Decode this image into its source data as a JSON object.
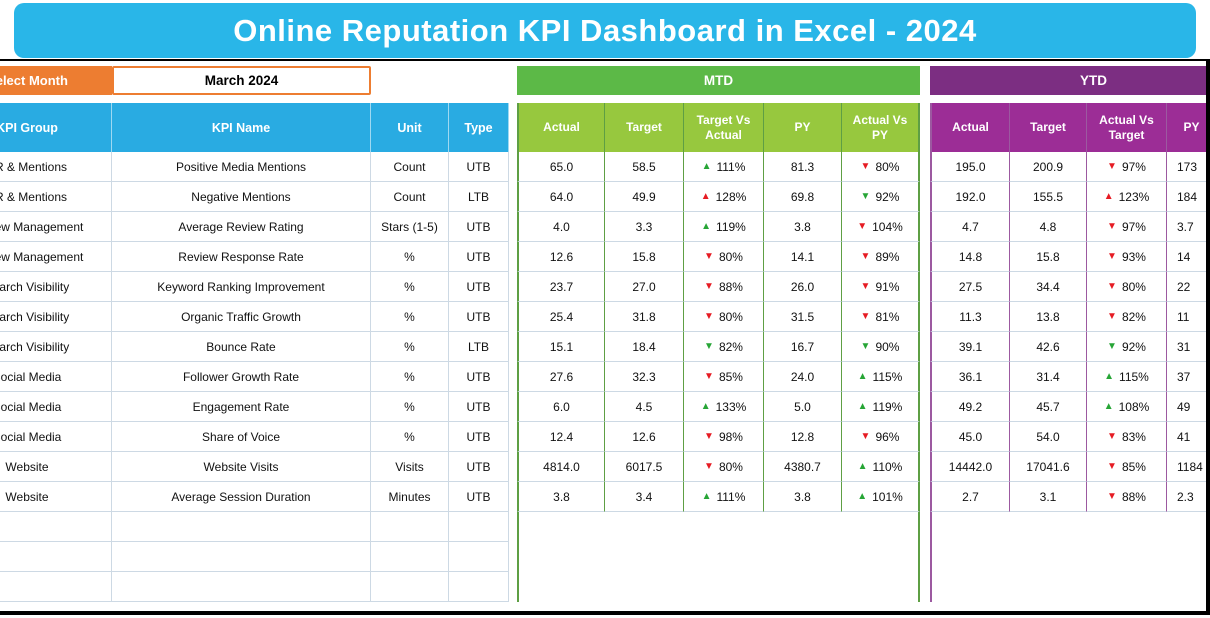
{
  "title": "Online Reputation KPI Dashboard in Excel - 2024",
  "controls": {
    "select_month_label": "Select Month",
    "selected_month": "March 2024"
  },
  "sections": {
    "mtd_label": "MTD",
    "ytd_label": "YTD"
  },
  "table": {
    "left_headers": [
      "KPI Group",
      "KPI Name",
      "Unit",
      "Type"
    ],
    "mtd_headers": [
      "Actual",
      "Target",
      "Target Vs Actual",
      "PY",
      "Actual Vs PY"
    ],
    "ytd_headers": [
      "Actual",
      "Target",
      "Actual Vs Target",
      "PY"
    ],
    "empty_row_count": 3,
    "rows": [
      {
        "group": "PR & Mentions",
        "name": "Positive Media Mentions",
        "unit": "Count",
        "type": "UTB",
        "mtd": {
          "actual": "65.0",
          "target": "58.5",
          "tva": {
            "d": "up",
            "c": "g",
            "v": "111%"
          },
          "py": "81.3",
          "avpy": {
            "d": "down",
            "c": "r",
            "v": "80%"
          }
        },
        "ytd": {
          "actual": "195.0",
          "target": "200.9",
          "avt": {
            "d": "down",
            "c": "r",
            "v": "97%"
          },
          "py": "173"
        }
      },
      {
        "group": "PR & Mentions",
        "name": "Negative Mentions",
        "unit": "Count",
        "type": "LTB",
        "mtd": {
          "actual": "64.0",
          "target": "49.9",
          "tva": {
            "d": "up",
            "c": "r",
            "v": "128%"
          },
          "py": "69.8",
          "avpy": {
            "d": "down",
            "c": "g",
            "v": "92%"
          }
        },
        "ytd": {
          "actual": "192.0",
          "target": "155.5",
          "avt": {
            "d": "up",
            "c": "r",
            "v": "123%"
          },
          "py": "184"
        }
      },
      {
        "group": "Review Management",
        "name": "Average Review Rating",
        "unit": "Stars (1-5)",
        "type": "UTB",
        "mtd": {
          "actual": "4.0",
          "target": "3.3",
          "tva": {
            "d": "up",
            "c": "g",
            "v": "119%"
          },
          "py": "3.8",
          "avpy": {
            "d": "down",
            "c": "r",
            "v": "104%"
          }
        },
        "ytd": {
          "actual": "4.7",
          "target": "4.8",
          "avt": {
            "d": "down",
            "c": "r",
            "v": "97%"
          },
          "py": "3.7"
        }
      },
      {
        "group": "Review Management",
        "name": "Review Response Rate",
        "unit": "%",
        "type": "UTB",
        "mtd": {
          "actual": "12.6",
          "target": "15.8",
          "tva": {
            "d": "down",
            "c": "r",
            "v": "80%"
          },
          "py": "14.1",
          "avpy": {
            "d": "down",
            "c": "r",
            "v": "89%"
          }
        },
        "ytd": {
          "actual": "14.8",
          "target": "15.8",
          "avt": {
            "d": "down",
            "c": "r",
            "v": "93%"
          },
          "py": "14"
        }
      },
      {
        "group": "Search Visibility",
        "name": "Keyword Ranking Improvement",
        "unit": "%",
        "type": "UTB",
        "mtd": {
          "actual": "23.7",
          "target": "27.0",
          "tva": {
            "d": "down",
            "c": "r",
            "v": "88%"
          },
          "py": "26.0",
          "avpy": {
            "d": "down",
            "c": "r",
            "v": "91%"
          }
        },
        "ytd": {
          "actual": "27.5",
          "target": "34.4",
          "avt": {
            "d": "down",
            "c": "r",
            "v": "80%"
          },
          "py": "22"
        }
      },
      {
        "group": "Search Visibility",
        "name": "Organic Traffic Growth",
        "unit": "%",
        "type": "UTB",
        "mtd": {
          "actual": "25.4",
          "target": "31.8",
          "tva": {
            "d": "down",
            "c": "r",
            "v": "80%"
          },
          "py": "31.5",
          "avpy": {
            "d": "down",
            "c": "r",
            "v": "81%"
          }
        },
        "ytd": {
          "actual": "11.3",
          "target": "13.8",
          "avt": {
            "d": "down",
            "c": "r",
            "v": "82%"
          },
          "py": "11"
        }
      },
      {
        "group": "Search Visibility",
        "name": "Bounce Rate",
        "unit": "%",
        "type": "LTB",
        "mtd": {
          "actual": "15.1",
          "target": "18.4",
          "tva": {
            "d": "down",
            "c": "g",
            "v": "82%"
          },
          "py": "16.7",
          "avpy": {
            "d": "down",
            "c": "g",
            "v": "90%"
          }
        },
        "ytd": {
          "actual": "39.1",
          "target": "42.6",
          "avt": {
            "d": "down",
            "c": "g",
            "v": "92%"
          },
          "py": "31"
        }
      },
      {
        "group": "Social Media",
        "name": "Follower Growth Rate",
        "unit": "%",
        "type": "UTB",
        "mtd": {
          "actual": "27.6",
          "target": "32.3",
          "tva": {
            "d": "down",
            "c": "r",
            "v": "85%"
          },
          "py": "24.0",
          "avpy": {
            "d": "up",
            "c": "g",
            "v": "115%"
          }
        },
        "ytd": {
          "actual": "36.1",
          "target": "31.4",
          "avt": {
            "d": "up",
            "c": "g",
            "v": "115%"
          },
          "py": "37"
        }
      },
      {
        "group": "Social Media",
        "name": "Engagement Rate",
        "unit": "%",
        "type": "UTB",
        "mtd": {
          "actual": "6.0",
          "target": "4.5",
          "tva": {
            "d": "up",
            "c": "g",
            "v": "133%"
          },
          "py": "5.0",
          "avpy": {
            "d": "up",
            "c": "g",
            "v": "119%"
          }
        },
        "ytd": {
          "actual": "49.2",
          "target": "45.7",
          "avt": {
            "d": "up",
            "c": "g",
            "v": "108%"
          },
          "py": "49"
        }
      },
      {
        "group": "Social Media",
        "name": "Share of Voice",
        "unit": "%",
        "type": "UTB",
        "mtd": {
          "actual": "12.4",
          "target": "12.6",
          "tva": {
            "d": "down",
            "c": "r",
            "v": "98%"
          },
          "py": "12.8",
          "avpy": {
            "d": "down",
            "c": "r",
            "v": "96%"
          }
        },
        "ytd": {
          "actual": "45.0",
          "target": "54.0",
          "avt": {
            "d": "down",
            "c": "r",
            "v": "83%"
          },
          "py": "41"
        }
      },
      {
        "group": "Website",
        "name": "Website Visits",
        "unit": "Visits",
        "type": "UTB",
        "mtd": {
          "actual": "4814.0",
          "target": "6017.5",
          "tva": {
            "d": "down",
            "c": "r",
            "v": "80%"
          },
          "py": "4380.7",
          "avpy": {
            "d": "up",
            "c": "g",
            "v": "110%"
          }
        },
        "ytd": {
          "actual": "14442.0",
          "target": "17041.6",
          "avt": {
            "d": "down",
            "c": "r",
            "v": "85%"
          },
          "py": "1184"
        }
      },
      {
        "group": "Website",
        "name": "Average Session Duration",
        "unit": "Minutes",
        "type": "UTB",
        "mtd": {
          "actual": "3.8",
          "target": "3.4",
          "tva": {
            "d": "up",
            "c": "g",
            "v": "111%"
          },
          "py": "3.8",
          "avpy": {
            "d": "up",
            "c": "g",
            "v": "101%"
          }
        },
        "ytd": {
          "actual": "2.7",
          "target": "3.1",
          "avt": {
            "d": "down",
            "c": "r",
            "v": "88%"
          },
          "py": "2.3"
        }
      }
    ]
  },
  "colors": {
    "banner": "#29B6E8",
    "cyanHeader": "#29ABE2",
    "orange": "#ED7D31",
    "mtdBand": "#5CB947",
    "mtdSub": "#97C83E",
    "greenBorder": "#5E9F44",
    "ytdBand": "#7C2E82",
    "ytdSub": "#9C2D96",
    "purpleBorder": "#9C59A0",
    "arrowGreen": "#27A536",
    "arrowRed": "#E61B23",
    "gridLine": "#CDD9E4",
    "frame": "#000000"
  }
}
